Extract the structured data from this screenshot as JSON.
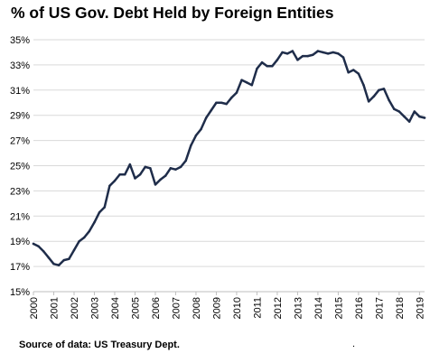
{
  "chart_data": {
    "type": "line",
    "title": "% of US Gov. Debt Held by Foreign Entities",
    "source": "Source of data: US Treasury Dept.",
    "xlabel": "",
    "ylabel": "",
    "xlim": [
      2000,
      2019.25
    ],
    "ylim": [
      15,
      35
    ],
    "x_ticks": [
      2000,
      2001,
      2002,
      2003,
      2004,
      2005,
      2006,
      2007,
      2008,
      2009,
      2010,
      2011,
      2012,
      2013,
      2014,
      2015,
      2016,
      2017,
      2018,
      2019
    ],
    "x_tick_labels": [
      "2000",
      "2001",
      "2002",
      "2003",
      "2004",
      "2005",
      "2006",
      "2007",
      "2008",
      "2009",
      "2010",
      "2011",
      "2012",
      "2013",
      "2014",
      "2015",
      "2016",
      "2017",
      "2018",
      "2019"
    ],
    "y_ticks": [
      15,
      17,
      19,
      21,
      23,
      25,
      27,
      29,
      31,
      33,
      35
    ],
    "y_tick_labels": [
      "15%",
      "17%",
      "19%",
      "21%",
      "23%",
      "25%",
      "27%",
      "29%",
      "31%",
      "33%",
      "35%"
    ],
    "grid": "horizontal",
    "line_color": "#1f2d4a",
    "series": [
      {
        "x": [
          2000.0,
          2000.25,
          2000.5,
          2000.75,
          2001.0,
          2001.25,
          2001.5,
          2001.75,
          2002.0,
          2002.25,
          2002.5,
          2002.75,
          2003.0,
          2003.25,
          2003.5,
          2003.75,
          2004.0,
          2004.25,
          2004.5,
          2004.75,
          2005.0,
          2005.25,
          2005.5,
          2005.75,
          2006.0,
          2006.25,
          2006.5,
          2006.75,
          2007.0,
          2007.25,
          2007.5,
          2007.75,
          2008.0,
          2008.25,
          2008.5,
          2008.75,
          2009.0,
          2009.25,
          2009.5,
          2009.75,
          2010.0,
          2010.25,
          2010.5,
          2010.75,
          2011.0,
          2011.25,
          2011.5,
          2011.75,
          2012.0,
          2012.25,
          2012.5,
          2012.75,
          2013.0,
          2013.25,
          2013.5,
          2013.75,
          2014.0,
          2014.25,
          2014.5,
          2014.75,
          2015.0,
          2015.25,
          2015.5,
          2015.75,
          2016.0,
          2016.25,
          2016.5,
          2016.75,
          2017.0,
          2017.25,
          2017.5,
          2017.75,
          2018.0,
          2018.25,
          2018.5,
          2018.75,
          2019.0,
          2019.25
        ],
        "values": [
          18.8,
          18.6,
          18.2,
          17.7,
          17.2,
          17.1,
          17.5,
          17.6,
          18.3,
          19.0,
          19.3,
          19.8,
          20.5,
          21.3,
          21.7,
          23.4,
          23.8,
          24.3,
          24.3,
          25.1,
          24.0,
          24.3,
          24.9,
          24.8,
          23.5,
          23.9,
          24.2,
          24.8,
          24.7,
          24.9,
          25.4,
          26.6,
          27.4,
          27.9,
          28.8,
          29.4,
          30.0,
          30.0,
          29.9,
          30.4,
          30.8,
          31.8,
          31.6,
          31.4,
          32.7,
          33.2,
          32.9,
          32.9,
          33.4,
          34.0,
          33.9,
          34.1,
          33.4,
          33.7,
          33.7,
          33.8,
          34.1,
          34.0,
          33.9,
          34.0,
          33.9,
          33.6,
          32.4,
          32.6,
          32.3,
          31.4,
          30.1,
          30.5,
          31.0,
          31.1,
          30.2,
          29.5,
          29.3,
          28.9,
          28.5,
          29.3,
          28.9,
          28.8
        ]
      }
    ]
  },
  "footer_mark": "."
}
